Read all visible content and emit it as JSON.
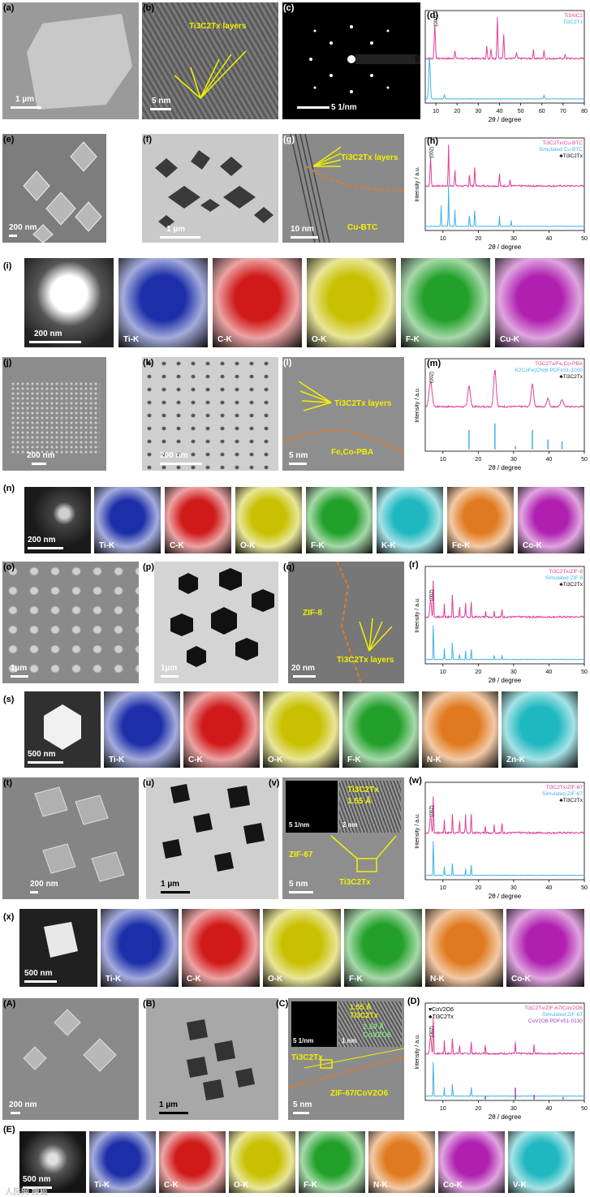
{
  "rows": [
    {
      "labels": [
        "(a)",
        "(b)",
        "(c)",
        "(d)"
      ],
      "scale": {
        "a": "1 µm",
        "b": "5 nm",
        "c": "5  1/nm"
      },
      "ann": {
        "b": "Ti3C2Tx layers"
      }
    },
    {
      "labels": [
        "(e)",
        "(f)",
        "(g)",
        "(h)"
      ],
      "scale": {
        "e": "200 nm",
        "f": "1 µm",
        "g": "10 nm"
      },
      "ann": {
        "g1": "Ti3C2Tx layers",
        "g2": "Cu-BTC"
      }
    },
    {
      "labels": [
        "(i)"
      ],
      "scale": {
        "i": "200 nm"
      },
      "elements": [
        "Ti-K",
        "C-K",
        "O-K",
        "F-K",
        "Cu-K"
      ]
    },
    {
      "labels": [
        "(j)",
        "(k)",
        "(l)",
        "(m)"
      ],
      "scale": {
        "j": "200 nm",
        "k": "200 nm",
        "l": "5 nm"
      },
      "ann": {
        "l1": "Ti3C2Tx layers",
        "l2": "Fe,Co-PBA"
      }
    },
    {
      "labels": [
        "(n)"
      ],
      "scale": {
        "n": "200 nm"
      },
      "elements": [
        "Ti-K",
        "C-K",
        "O-K",
        "F-K",
        "K-K",
        "Fe-K",
        "Co-K"
      ]
    },
    {
      "labels": [
        "(o)",
        "(p)",
        "(q)",
        "(r)"
      ],
      "scale": {
        "o": "1µm",
        "p": "1µm",
        "q": "20 nm"
      },
      "ann": {
        "q1": "ZIF-8",
        "q2": "Ti3C2Tx layers"
      }
    },
    {
      "labels": [
        "(s)"
      ],
      "scale": {
        "s": "500 nm"
      },
      "elements": [
        "Ti-K",
        "C-K",
        "O-K",
        "F-K",
        "N-K",
        "Zn-K"
      ]
    },
    {
      "labels": [
        "(t)",
        "(u)",
        "(v)",
        "(w)"
      ],
      "scale": {
        "t": "200 nm",
        "u": "1 µm",
        "v": "5 nm",
        "v_in1": "5 1/nm",
        "v_in2": "2 nm"
      },
      "ann": {
        "v1": "Ti3C2Tx",
        "v2": "1.55 Å",
        "v3": "ZIF-67",
        "v4": "Ti3C2Tx"
      }
    },
    {
      "labels": [
        "(x)"
      ],
      "scale": {
        "x": "500 nm"
      },
      "elements": [
        "Ti-K",
        "C-K",
        "O-K",
        "F-K",
        "N-K",
        "Co-K"
      ]
    },
    {
      "labels": [
        "(A)",
        "(B)",
        "(C)",
        "(D)"
      ],
      "scale": {
        "A": "200 nm",
        "B": "1 µm",
        "C": "5 nm",
        "C_in1": "5 1/nm",
        "C_in2": "1 nm"
      },
      "ann": {
        "C1": "1.55 Å",
        "C2": "Ti3C2Tx",
        "C3": "2.50 Å",
        "C4": "CoV2O6",
        "C5": "Ti3C2Tx",
        "C6": "ZIF-67/CoV2O6",
        "C7": "CoV2O6",
        "C8": "2.50 Å"
      }
    },
    {
      "labels": [
        "(E)"
      ],
      "scale": {
        "E": "500 nm"
      },
      "elements": [
        "Ti-K",
        "C-K",
        "O-K",
        "F-K",
        "N-K",
        "Co-K",
        "V-K"
      ]
    }
  ],
  "watermark": "人民网 搜狐",
  "chart_data": [
    {
      "id": "d",
      "type": "line",
      "xlabel": "2θ / degree",
      "ylabel": "Intensity / a.u.",
      "xlim": [
        5,
        80
      ],
      "xticks": [
        10,
        20,
        30,
        40,
        50,
        60,
        70,
        80
      ],
      "series": [
        {
          "name": "Ti3AlC2",
          "color": "#e0409a"
        },
        {
          "name": "Ti3C2Tx",
          "color": "#3fb3e6"
        }
      ],
      "peak_labels": [
        "(002)",
        "(004)",
        "(101)",
        "(008)",
        "(104)",
        "(105)",
        "(002)"
      ]
    },
    {
      "id": "h",
      "type": "line",
      "xlabel": "2θ / degree",
      "ylabel": "Intensity / a.u.",
      "xlim": [
        5,
        50
      ],
      "xticks": [
        10,
        20,
        30,
        40,
        50
      ],
      "series": [
        {
          "name": "Ti3C2Tx/Cu-BTC",
          "color": "#e0409a"
        },
        {
          "name": "Simulated Cu-BTC",
          "color": "#3fb3e6"
        },
        {
          "name": "♣Ti3C2Tx",
          "color": "#000000"
        }
      ],
      "peak_labels": [
        "(002)",
        "(220)",
        "(222)",
        "(333)",
        "(440)"
      ]
    },
    {
      "id": "m",
      "type": "line",
      "xlabel": "2θ / degree",
      "ylabel": "Intensity / a.u.",
      "xlim": [
        5,
        50
      ],
      "xticks": [
        10,
        20,
        30,
        40,
        50
      ],
      "series": [
        {
          "name": "Ti3C2Tx/Fe,Co-PBA",
          "color": "#e0409a"
        },
        {
          "name": "K2CoFe(CN)6  PDF#31-1000",
          "color": "#3fb3e6"
        },
        {
          "name": "♣Ti3C2Tx",
          "color": "#000000"
        }
      ],
      "peak_labels": [
        "(002)"
      ]
    },
    {
      "id": "r",
      "type": "line",
      "xlabel": "2θ / degree",
      "ylabel": "Intensity / a.u.",
      "xlim": [
        5,
        50
      ],
      "xticks": [
        10,
        20,
        30,
        40,
        50
      ],
      "series": [
        {
          "name": "Ti3C2Tx/ZIF-8",
          "color": "#e0409a"
        },
        {
          "name": "Simulated ZIF-8",
          "color": "#3fb3e6"
        },
        {
          "name": "♣Ti3C2Tx",
          "color": "#000000"
        }
      ],
      "peak_labels": [
        "(002)"
      ]
    },
    {
      "id": "w",
      "type": "line",
      "xlabel": "2θ / degree",
      "ylabel": "Intensity / a.u.",
      "xlim": [
        5,
        50
      ],
      "xticks": [
        10,
        20,
        30,
        40,
        50
      ],
      "series": [
        {
          "name": "Ti3C2Tx/ZIF-67",
          "color": "#e0409a"
        },
        {
          "name": "Simulated ZIF-67",
          "color": "#3fb3e6"
        },
        {
          "name": "♣Ti3C2Tx",
          "color": "#000000"
        }
      ],
      "peak_labels": [
        "(002)"
      ]
    },
    {
      "id": "D",
      "type": "line",
      "xlabel": "2θ / degree",
      "ylabel": "Intensity / a.u.",
      "xlim": [
        5,
        50
      ],
      "xticks": [
        10,
        20,
        30,
        40,
        50
      ],
      "series": [
        {
          "name": "Ti3C2Tx/ZIF-67/CoV2O6",
          "color": "#e0409a"
        },
        {
          "name": "Simulated ZIF-67",
          "color": "#3fb3e6"
        },
        {
          "name": "CoV2O6  PDF#51-0130",
          "color": "#a040c0"
        }
      ],
      "markers": [
        "♥CoV2O6",
        "♣Ti3C2Tx"
      ],
      "peak_labels": [
        "(002)",
        "(110)",
        "(210)",
        "(013)"
      ]
    }
  ]
}
